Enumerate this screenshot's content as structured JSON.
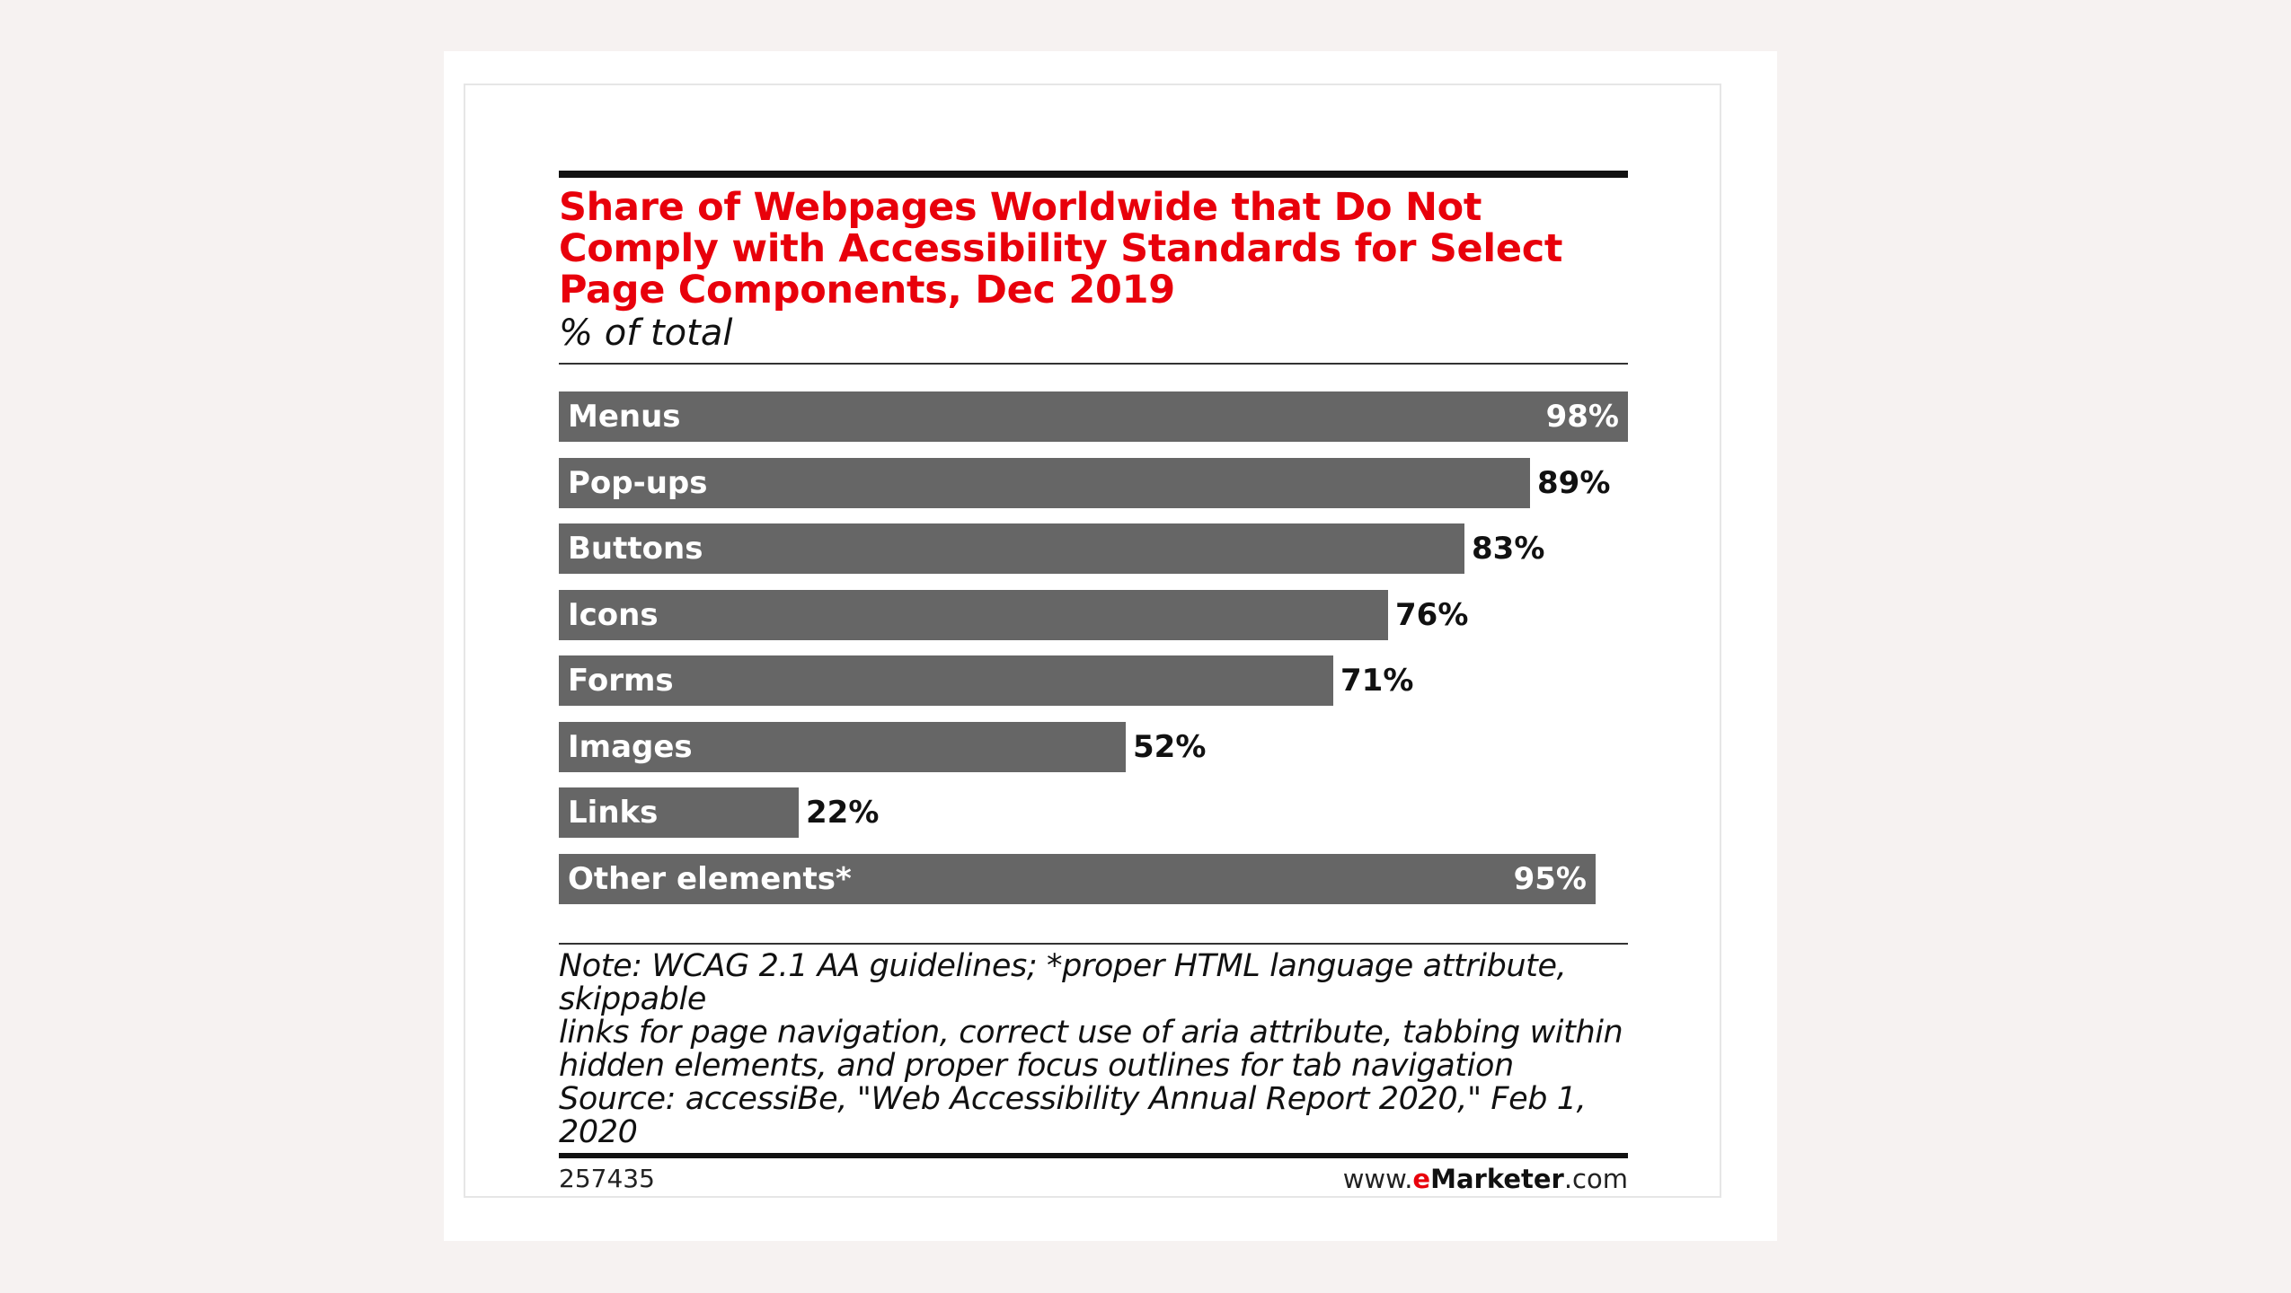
{
  "chart_data": {
    "type": "bar",
    "orientation": "horizontal",
    "title": "Share of Webpages Worldwide that Do Not Comply with Accessibility Standards for Select Page Components, Dec 2019",
    "subtitle": "% of total",
    "categories": [
      "Menus",
      "Pop-ups",
      "Buttons",
      "Icons",
      "Forms",
      "Images",
      "Links",
      "Other elements*"
    ],
    "values": [
      98,
      89,
      83,
      76,
      71,
      52,
      22,
      95
    ],
    "value_labels": [
      "98%",
      "89%",
      "83%",
      "76%",
      "71%",
      "52%",
      "22%",
      "95%"
    ],
    "xlim": [
      0,
      98
    ],
    "bar_color": "#666666",
    "grid": false,
    "legend": "none"
  },
  "note": {
    "line1": "Note: WCAG 2.1 AA guidelines; *proper HTML language attribute, skippable",
    "line2": "links for page navigation, correct use of aria attribute, tabbing within",
    "line3": "hidden elements, and proper focus outlines for tab navigation",
    "source": "Source: accessiBe, \"Web Accessibility Annual Report 2020,\" Feb 1, 2020"
  },
  "footer": {
    "chart_id": "257435",
    "brand_prefix": "www.",
    "brand_e": "e",
    "brand_name": "Marketer",
    "brand_suffix": ".com"
  },
  "colors": {
    "title": "#e8000b",
    "bar": "#666666",
    "background": "#f6f2f1"
  }
}
